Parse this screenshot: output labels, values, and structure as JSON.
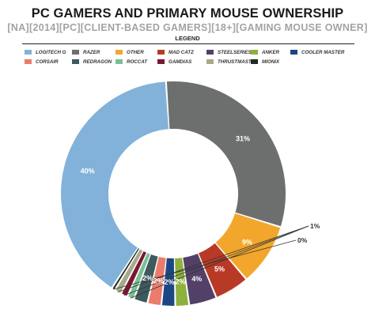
{
  "chart_data": {
    "type": "pie",
    "donut": true,
    "title": "PC GAMERS AND PRIMARY MOUSE OWNERSHIP",
    "subtitle": "[NA][2014][PC][CLIENT-BASED GAMERS][18+][GAMING MOUSE OWNER]",
    "legend_title": "LEGEND",
    "legend_placement": "top",
    "slices": [
      {
        "name": "LOGITECH G",
        "value": 40,
        "label": "40%",
        "color": "#82b2d9"
      },
      {
        "name": "RAZER",
        "value": 31,
        "label": "31%",
        "color": "#6d6e6e"
      },
      {
        "name": "OTHER",
        "value": 9,
        "label": "9%",
        "color": "#f2a72c"
      },
      {
        "name": "MAD CATZ",
        "value": 5,
        "label": "5%",
        "color": "#b83a26"
      },
      {
        "name": "STEELSERIES",
        "value": 4,
        "label": "4%",
        "color": "#524068"
      },
      {
        "name": "ANKER",
        "value": 2,
        "label": "2%",
        "color": "#8db13c"
      },
      {
        "name": "COOLER MASTER",
        "value": 2,
        "label": "2%",
        "color": "#1c4784"
      },
      {
        "name": "CORSAIR",
        "value": 2,
        "label": "2%",
        "color": "#eb7c6c"
      },
      {
        "name": "REDRAGON",
        "value": 2,
        "label": "2%",
        "color": "#3d5a5e"
      },
      {
        "name": "ROCCAT",
        "value": 1,
        "label": "",
        "color": "#7bbf94"
      },
      {
        "name": "GAMDIAS",
        "value": 1,
        "label": "",
        "color": "#7a1830"
      },
      {
        "name": "THRUSTMASTER",
        "value": 1,
        "label": "",
        "color": "#a8a98a"
      },
      {
        "name": "MIONIX",
        "value": 0,
        "label": "",
        "color": "#1e2d24"
      }
    ],
    "callouts": [
      {
        "text": "1%",
        "slices": [
          "ROCCAT",
          "GAMDIAS",
          "THRUSTMASTER"
        ]
      },
      {
        "text": "0%",
        "slices": [
          "MIONIX"
        ]
      }
    ]
  }
}
